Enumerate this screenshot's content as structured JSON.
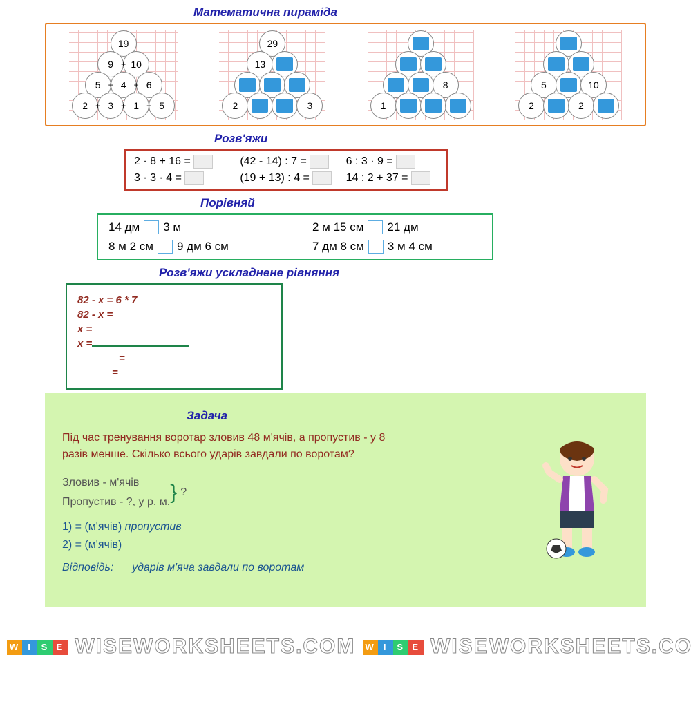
{
  "titles": {
    "pyramid": "Математична пираміда",
    "solve": "Розв'яжи",
    "compare": "Порівняй",
    "equation": "Розв'яжи ускладнене  рівняння",
    "problem": "Задача"
  },
  "pyramids": [
    {
      "rows": [
        [
          "19"
        ],
        [
          "9",
          "10"
        ],
        [
          "5",
          "4",
          "6"
        ],
        [
          "2",
          "3",
          "1",
          "5"
        ]
      ],
      "plus": true,
      "fill": []
    },
    {
      "rows": [
        [
          "29"
        ],
        [
          "13",
          ""
        ],
        [
          "",
          "",
          ""
        ],
        [
          "2",
          "",
          "",
          "3"
        ]
      ],
      "fill": [
        [],
        [
          1
        ],
        [
          0,
          1,
          2
        ],
        [
          1,
          2
        ]
      ]
    },
    {
      "rows": [
        [
          ""
        ],
        [
          "",
          ""
        ],
        [
          "",
          "",
          "8"
        ],
        [
          "1",
          "",
          "",
          ""
        ]
      ],
      "fill": [
        [
          0
        ],
        [
          0,
          1
        ],
        [
          0,
          1
        ],
        [
          1,
          2,
          3
        ]
      ]
    },
    {
      "rows": [
        [
          ""
        ],
        [
          "",
          ""
        ],
        [
          "5",
          "",
          "10"
        ],
        [
          "2",
          "",
          "2",
          ""
        ]
      ],
      "fill": [
        [
          0
        ],
        [
          0,
          1
        ],
        [
          1
        ],
        [
          1,
          3
        ]
      ]
    }
  ],
  "solve": [
    {
      "e": "2 · 8 + 16 ="
    },
    {
      "e": "(42 - 14) : 7 ="
    },
    {
      "e": "6 : 3 · 9 ="
    },
    {
      "e": "3 · 3 · 4 ="
    },
    {
      "e": "(19 + 13) : 4 ="
    },
    {
      "e": "14 : 2 + 37 ="
    }
  ],
  "compare": [
    {
      "l": "14 дм",
      "r": "3 м"
    },
    {
      "l": "2 м 15 см",
      "r": "21 дм"
    },
    {
      "l": "8 м 2 см",
      "r": "9 дм 6 см"
    },
    {
      "l": "7 дм 8 см",
      "r": "3 м 4 см"
    }
  ],
  "equation": {
    "l1": "82 - х = 6 * 7",
    "l2": "82 - х =",
    "l3": "х =",
    "l4": "х =",
    "l5": "=",
    "l6": "="
  },
  "problem": {
    "text": "Під час тренування воротар зловив 48 м'ячів, а пропустив - у 8 разів менше. Скілько всього ударів завдали по воротам?",
    "scheme1": "Зловив -     м'ячів",
    "scheme2": "Пропустив  - ?,  у      р.  м.",
    "q": "?",
    "step1": "1)              =      (м'ячів) ",
    "step1i": "пропустив",
    "step2": "2)                =       (м'ячів)",
    "ans_label": "Відповідь:",
    "ans_text": "ударів м'яча завдали по воротам"
  },
  "watermark": "WISEWORKSHEETS.COM",
  "colors": {
    "fill": "#5dade2",
    "orange": "#e67e22",
    "red": "#c0392b",
    "green": "#27ae60",
    "dgreen": "#1e8449"
  }
}
